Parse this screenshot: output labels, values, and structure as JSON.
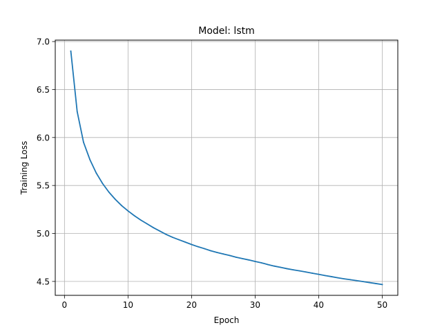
{
  "chart_data": {
    "type": "line",
    "title": "Model: lstm",
    "xlabel": "Epoch",
    "ylabel": "Training Loss",
    "xlim": [
      -1.45,
      52.45
    ],
    "ylim": [
      4.355,
      7.015
    ],
    "grid": true,
    "x_ticks": [
      0,
      10,
      20,
      30,
      40,
      50
    ],
    "y_ticks": [
      4.5,
      5.0,
      5.5,
      6.0,
      6.5,
      7.0
    ],
    "x_tick_labels": [
      "0",
      "10",
      "20",
      "30",
      "40",
      "50"
    ],
    "y_tick_labels": [
      "4.5",
      "5.0",
      "5.5",
      "6.0",
      "6.5",
      "7.0"
    ],
    "series": [
      {
        "color": "#1f77b4",
        "x": [
          1,
          2,
          3,
          4,
          5,
          6,
          7,
          8,
          9,
          10,
          11,
          12,
          13,
          14,
          15,
          16,
          17,
          18,
          19,
          20,
          21,
          22,
          23,
          24,
          25,
          26,
          27,
          28,
          29,
          30,
          31,
          32,
          33,
          34,
          35,
          36,
          37,
          38,
          39,
          40,
          41,
          42,
          43,
          44,
          45,
          46,
          47,
          48,
          49,
          50
        ],
        "y": [
          6.9,
          6.27,
          5.95,
          5.77,
          5.63,
          5.52,
          5.43,
          5.355,
          5.29,
          5.235,
          5.185,
          5.14,
          5.1,
          5.06,
          5.025,
          4.99,
          4.96,
          4.935,
          4.91,
          4.885,
          4.862,
          4.842,
          4.82,
          4.802,
          4.786,
          4.77,
          4.752,
          4.738,
          4.724,
          4.708,
          4.694,
          4.676,
          4.66,
          4.647,
          4.633,
          4.621,
          4.61,
          4.598,
          4.586,
          4.574,
          4.561,
          4.55,
          4.538,
          4.527,
          4.518,
          4.508,
          4.498,
          4.488,
          4.478,
          4.468
        ]
      }
    ]
  }
}
